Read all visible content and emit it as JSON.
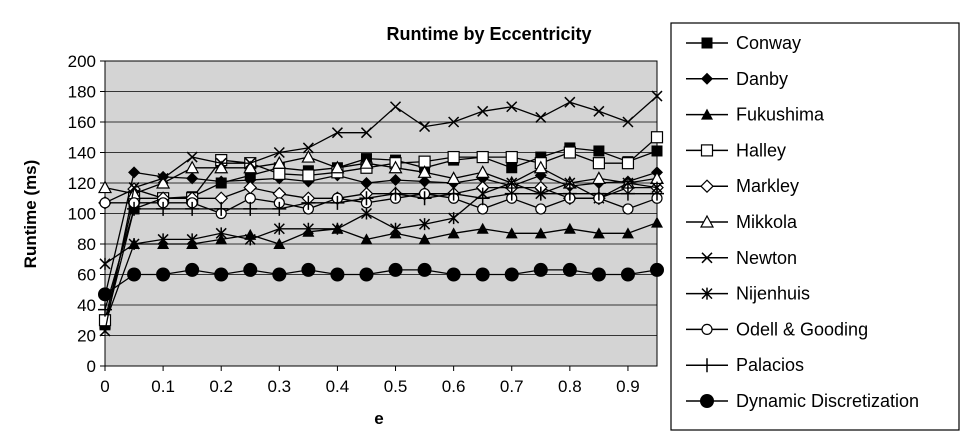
{
  "chart_data": {
    "type": "line",
    "title": "Runtime by Eccentricity",
    "xlabel": "e",
    "ylabel": "Runtime (ms)",
    "xlim": [
      0,
      0.95
    ],
    "ylim": [
      0,
      200
    ],
    "x_ticks": [
      0,
      0.1,
      0.2,
      0.3,
      0.4,
      0.5,
      0.6,
      0.7,
      0.8,
      0.9
    ],
    "x_tick_labels": [
      "0",
      "0.1",
      "0.2",
      "0.3",
      "0.4",
      "0.5",
      "0.6",
      "0.7",
      "0.8",
      "0.9"
    ],
    "y_ticks": [
      0,
      20,
      40,
      60,
      80,
      100,
      120,
      140,
      160,
      180,
      200
    ],
    "y_tick_labels": [
      "0",
      "20",
      "40",
      "60",
      "80",
      "100",
      "120",
      "140",
      "160",
      "180",
      "200"
    ],
    "grid": "horizontal",
    "background": "#d4d4d4",
    "legend_position": "right",
    "x": [
      0,
      0.05,
      0.1,
      0.15,
      0.2,
      0.25,
      0.3,
      0.35,
      0.4,
      0.45,
      0.5,
      0.55,
      0.6,
      0.65,
      0.7,
      0.75,
      0.8,
      0.85,
      0.9,
      0.95
    ],
    "series": [
      {
        "name": "Conway",
        "marker": "filled-square",
        "values": [
          27,
          103,
          110,
          111,
          120,
          125,
          130,
          128,
          130,
          136,
          135,
          130,
          135,
          137,
          130,
          137,
          143,
          141,
          134,
          141
        ]
      },
      {
        "name": "Danby",
        "marker": "filled-diamond",
        "values": [
          46,
          127,
          124,
          123,
          121,
          122,
          123,
          121,
          125,
          120,
          122,
          121,
          120,
          123,
          118,
          125,
          118,
          120,
          121,
          127
        ]
      },
      {
        "name": "Fukushima",
        "marker": "filled-triangle",
        "values": [
          28,
          80,
          80,
          80,
          83,
          86,
          80,
          88,
          90,
          83,
          87,
          83,
          87,
          90,
          87,
          87,
          90,
          87,
          87,
          94
        ]
      },
      {
        "name": "Halley",
        "marker": "open-square",
        "values": [
          30,
          110,
          110,
          110,
          135,
          133,
          126,
          125,
          127,
          130,
          133,
          134,
          137,
          137,
          137,
          133,
          140,
          133,
          133,
          150
        ]
      },
      {
        "name": "Markley",
        "marker": "open-diamond",
        "values": [
          107,
          116,
          110,
          110,
          110,
          117,
          113,
          110,
          110,
          113,
          113,
          113,
          113,
          117,
          117,
          117,
          110,
          110,
          117,
          117
        ]
      },
      {
        "name": "Mikkola",
        "marker": "open-triangle",
        "values": [
          117,
          113,
          120,
          130,
          130,
          130,
          133,
          137,
          130,
          133,
          130,
          127,
          123,
          127,
          120,
          130,
          120,
          123,
          120,
          123
        ]
      },
      {
        "name": "Newton",
        "marker": "x",
        "values": [
          23,
          117,
          123,
          137,
          133,
          133,
          140,
          143,
          153,
          153,
          170,
          157,
          160,
          167,
          170,
          163,
          173,
          167,
          160,
          177
        ]
      },
      {
        "name": "Nijenhuis",
        "marker": "asterisk",
        "values": [
          67,
          80,
          83,
          83,
          87,
          83,
          90,
          90,
          90,
          100,
          90,
          93,
          97,
          113,
          120,
          113,
          120,
          110,
          120,
          117
        ]
      },
      {
        "name": "Odell & Gooding",
        "marker": "open-circle",
        "values": [
          107,
          107,
          107,
          107,
          100,
          110,
          107,
          103,
          110,
          107,
          110,
          113,
          110,
          103,
          110,
          103,
          110,
          110,
          103,
          110
        ]
      },
      {
        "name": "Palacios",
        "marker": "plus",
        "values": [
          37,
          103,
          103,
          103,
          103,
          103,
          103,
          107,
          107,
          110,
          113,
          110,
          113,
          110,
          113,
          113,
          113,
          113,
          113,
          113
        ]
      },
      {
        "name": "Dynamic Discretization",
        "marker": "filled-circle",
        "values": [
          47,
          60,
          60,
          63,
          60,
          63,
          60,
          63,
          60,
          60,
          63,
          63,
          60,
          60,
          60,
          63,
          63,
          60,
          60,
          63
        ]
      }
    ]
  }
}
